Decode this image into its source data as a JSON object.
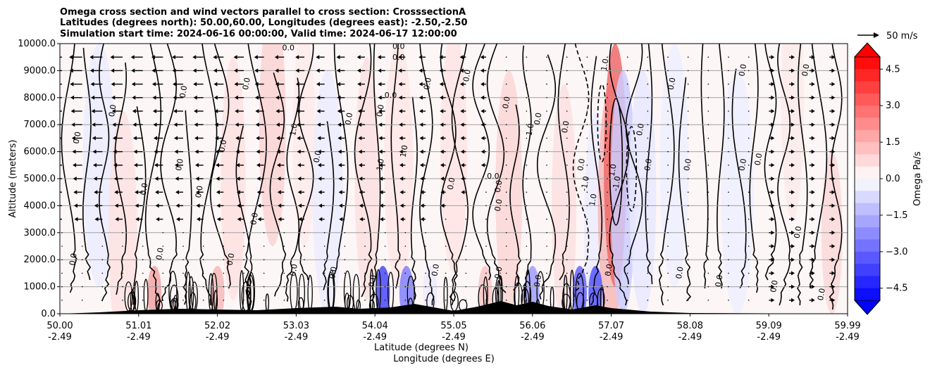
{
  "chart_data": {
    "type": "contour",
    "title_lines": [
      "Omega cross section and wind vectors parallel to cross section: CrosssectionA",
      "Latitudes (degrees north): 50.00,60.00, Longitudes (degrees east): -2.50,-2.50",
      "Simulation start time: 2024-06-16 00:00:00, Valid time: 2024-06-17 12:00:00"
    ],
    "ylabel": "Altitude (meters)",
    "xlabel_line1": "Latitude (degrees N)",
    "xlabel_line2": "Longitude (degrees E)",
    "ylim": [
      0,
      10000
    ],
    "yticks": [
      "0.0",
      "1000.0",
      "2000.0",
      "3000.0",
      "4000.0",
      "5000.0",
      "6000.0",
      "7000.0",
      "8000.0",
      "9000.0",
      "10000.0"
    ],
    "xlim": [
      50.0,
      59.99
    ],
    "xticks": [
      {
        "lat": "50.00",
        "lon": "-2.49"
      },
      {
        "lat": "51.01",
        "lon": "-2.49"
      },
      {
        "lat": "52.02",
        "lon": "-2.49"
      },
      {
        "lat": "53.03",
        "lon": "-2.49"
      },
      {
        "lat": "54.04",
        "lon": "-2.49"
      },
      {
        "lat": "55.05",
        "lon": "-2.49"
      },
      {
        "lat": "56.06",
        "lon": "-2.49"
      },
      {
        "lat": "57.07",
        "lon": "-2.49"
      },
      {
        "lat": "58.08",
        "lon": "-2.49"
      },
      {
        "lat": "59.09",
        "lon": "-2.49"
      },
      {
        "lat": "59.99",
        "lon": "-2.49"
      }
    ],
    "colorbar": {
      "label": "Omega Pa/s",
      "range": [
        -5.0,
        5.0
      ],
      "ticks": [
        "−4.5",
        "−3.0",
        "−1.5",
        "0.0",
        "1.5",
        "3.0",
        "4.5"
      ],
      "low_color": "#0000ff",
      "mid_color": "#ffffff",
      "high_color": "#ff0000"
    },
    "quiver_key_label": "50 m/s",
    "contour_labels": [
      "0.0",
      "1.0",
      "-1.0"
    ],
    "grid": true
  }
}
